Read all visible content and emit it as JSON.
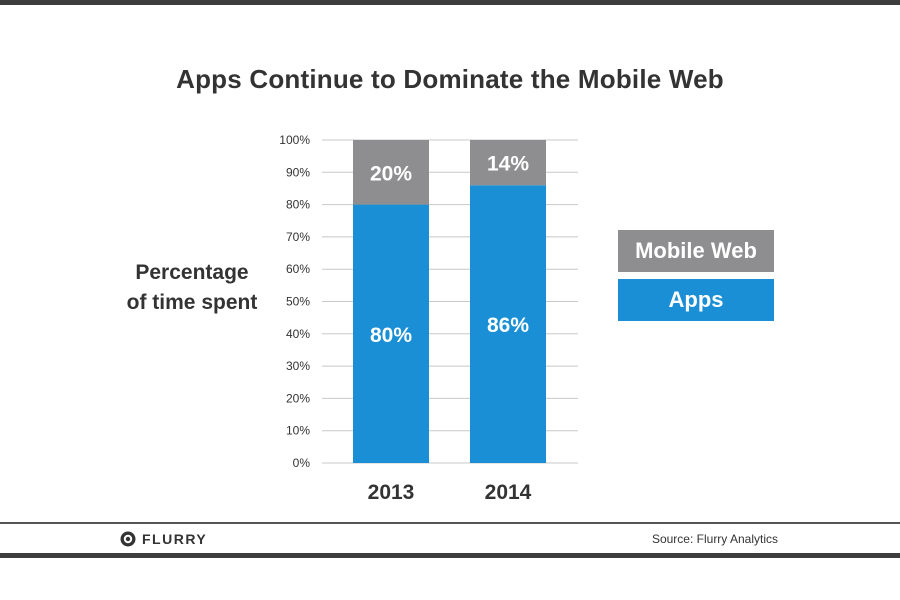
{
  "chart_data": {
    "type": "bar",
    "stacked": true,
    "title": "Apps Continue to Dominate the Mobile Web",
    "ylabel": [
      "Percentage",
      "of time spent"
    ],
    "categories": [
      "2013",
      "2014"
    ],
    "series": [
      {
        "name": "Apps",
        "values": [
          80,
          86
        ],
        "labels": [
          "80%",
          "86%"
        ],
        "color": "#1a8fd6"
      },
      {
        "name": "Mobile Web",
        "values": [
          20,
          14
        ],
        "labels": [
          "20%",
          "14%"
        ],
        "color": "#8e8e90"
      }
    ],
    "ylim": [
      0,
      100
    ],
    "yticks": [
      "0%",
      "10%",
      "20%",
      "30%",
      "40%",
      "50%",
      "60%",
      "70%",
      "80%",
      "90%",
      "100%"
    ],
    "grid": true,
    "legend": {
      "placement": "right",
      "items": [
        "Mobile Web",
        "Apps"
      ]
    }
  },
  "footer": {
    "brand": "FLURRY",
    "source": "Source: Flurry Analytics"
  },
  "colors": {
    "apps": "#1a8fd6",
    "mobile_web": "#8e8e90",
    "text": "#333333",
    "grid": "#c8c8c8"
  }
}
